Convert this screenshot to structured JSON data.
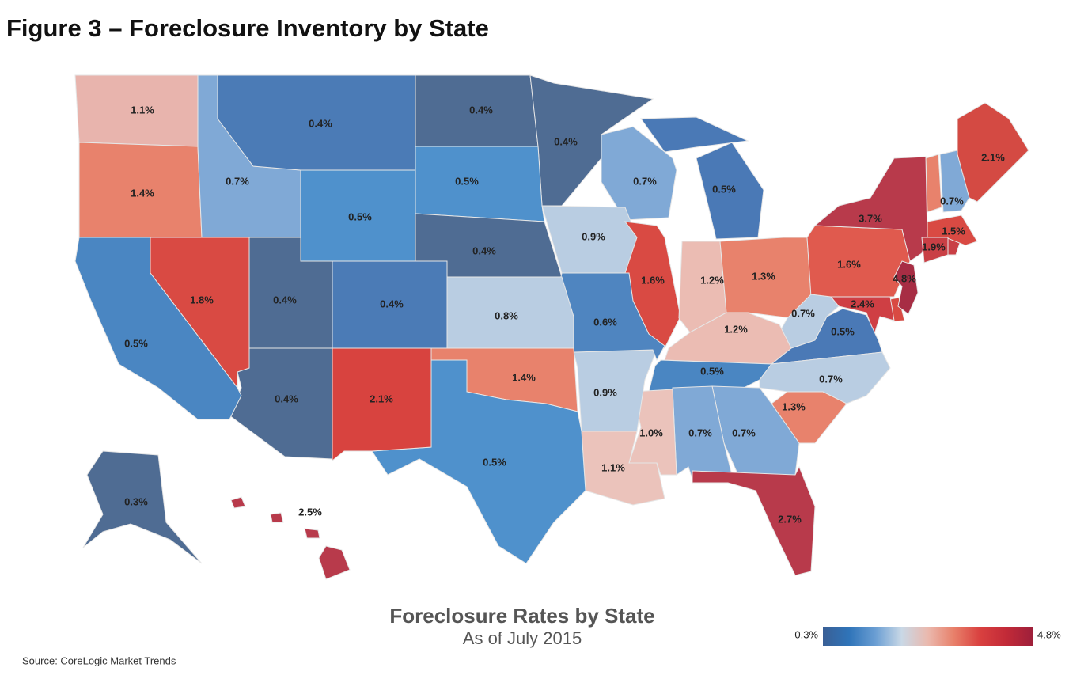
{
  "chart_data": {
    "type": "choropleth",
    "title": "Figure 3 – Foreclosure Inventory by State",
    "map_title": "Foreclosure Rates by State",
    "subtitle": "As of July 2015",
    "source": "Source: CoreLogic Market Trends",
    "values": [
      1.1,
      1.4,
      0.7,
      0.4,
      0.4,
      0.4,
      0.7,
      0.5,
      0.5,
      0.5,
      0.4,
      0.9,
      1.6,
      1.2,
      1.3,
      1.6,
      3.7,
      0.7,
      2.1,
      1.5,
      1.9,
      4.8,
      2.4,
      0.7,
      0.5,
      1.2,
      0.5,
      0.7,
      1.3,
      0.7,
      0.7,
      1.0,
      1.1,
      0.9,
      0.6,
      0.8,
      1.4,
      0.5,
      2.1,
      0.4,
      0.4,
      0.4,
      1.8,
      0.5,
      0.3,
      2.5,
      2.7
    ],
    "value_labels": [
      "1.1%",
      "1.4%",
      "0.7%",
      "0.4%",
      "0.4%",
      "0.4%",
      "0.7%",
      "0.5%",
      "0.5%",
      "0.5%",
      "0.4%",
      "0.9%",
      "1.6%",
      "1.2%",
      "1.3%",
      "1.6%",
      "3.7%",
      "0.7%",
      "2.1%",
      "1.5%",
      "1.9%",
      "4.8%",
      "2.4%",
      "0.7%",
      "0.5%",
      "1.2%",
      "0.5%",
      "0.7%",
      "1.3%",
      "0.7%",
      "0.7%",
      "1.0%",
      "1.1%",
      "0.9%",
      "0.6%",
      "0.8%",
      "1.4%",
      "0.5%",
      "2.1%",
      "0.4%",
      "0.4%",
      "0.4%",
      "1.8%",
      "0.5%",
      "0.3%",
      "2.5%",
      "2.7%"
    ],
    "colors": [
      "#e8b4ad",
      "#e8826c",
      "#80a9d6",
      "#4b7bb6",
      "#4f6c93",
      "#4f6c93",
      "#80a9d6",
      "#4a79b6",
      "#4f91cc",
      "#4f91cc",
      "#4f6c93",
      "#b9cde2",
      "#d94a43",
      "#ebbcb3",
      "#e8826c",
      "#e05a4e",
      "#b83a4b",
      "#80a9d6",
      "#d44a43",
      "#d94a43",
      "#c93f45",
      "#a72d44",
      "#cf3f44",
      "#b9cde2",
      "#4a79b6",
      "#ebbcb3",
      "#4a86c2",
      "#b9cde2",
      "#e8826c",
      "#80a9d6",
      "#80a9d6",
      "#ebc3bb",
      "#ebc3bb",
      "#b9cde2",
      "#4f85c0",
      "#b9cde2",
      "#e8826c",
      "#4f91cc",
      "#d8433f",
      "#4b7bb6",
      "#4f6c93",
      "#4f6c93",
      "#d94a43",
      "#4a86c2",
      "#4f6c93",
      "#b83a4b",
      "#b83a4b"
    ],
    "colorbar": {
      "range": [
        0.3,
        4.8
      ],
      "ticks": [
        {
          "value": 0.3,
          "label": "0.3%"
        },
        {
          "value": 4.8,
          "label": "4.8%"
        }
      ],
      "colors": [
        "#3a5f95",
        "#2f74b9",
        "#6a9ed3",
        "#c9d8e6",
        "#eab9ae",
        "#e8806a",
        "#d9403f",
        "#c22a38",
        "#9e1f3a"
      ]
    }
  }
}
